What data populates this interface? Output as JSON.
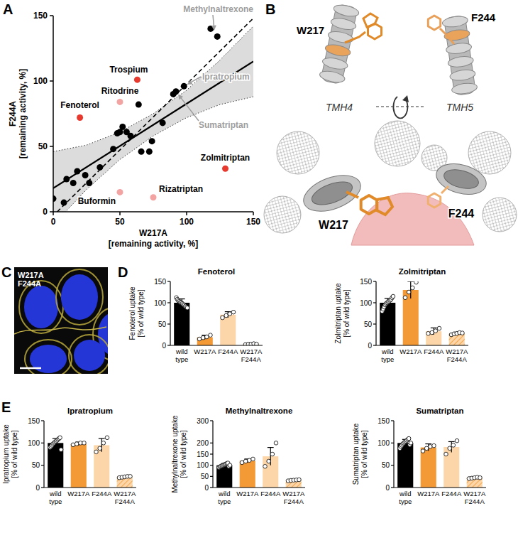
{
  "panel_letters": [
    "A",
    "B",
    "C",
    "D",
    "E"
  ],
  "structure": {
    "residues": [
      "W217",
      "F244"
    ],
    "helices": [
      "TMH4",
      "TMH5"
    ]
  },
  "microscopy": {
    "label": "W217A F244A"
  },
  "chart_data": [
    {
      "type": "scatter",
      "xlabel": "W217A [remaining activity, %]",
      "ylabel": "F244A [remaining activity, %]",
      "xlim": [
        0,
        150
      ],
      "ylim": [
        0,
        150
      ],
      "xticks": [
        0,
        50,
        100,
        150
      ],
      "yticks": [
        0,
        50,
        100,
        150
      ],
      "series": [
        {
          "type": "band",
          "color": "#dcdcdc",
          "line_style": "dotted",
          "x": [
            0,
            25,
            50,
            75,
            100,
            125,
            150
          ],
          "lower": [
            -10,
            17,
            40,
            58,
            72,
            82,
            88
          ],
          "upper": [
            46,
            51,
            61,
            75,
            93,
            116,
            142
          ]
        },
        {
          "type": "line",
          "color": "#000000",
          "line_style": "solid",
          "x": [
            0,
            150
          ],
          "values": [
            18,
            115
          ]
        },
        {
          "type": "line",
          "color": "#000000",
          "line_style": "dashed",
          "x": [
            3,
            150
          ],
          "values": [
            0,
            148
          ]
        },
        {
          "type": "scatter",
          "color": "#000000",
          "x": [
            0,
            8,
            10,
            15,
            18,
            24,
            27,
            35,
            45,
            48,
            50,
            52,
            55,
            58,
            64,
            66,
            72,
            74,
            82,
            90,
            92,
            98,
            118,
            123
          ],
          "values": [
            10,
            7,
            25,
            22,
            31,
            28,
            22,
            34,
            48,
            60,
            61,
            65,
            61,
            58,
            82,
            46,
            46,
            54,
            68,
            90,
            92,
            96,
            140,
            134
          ]
        },
        {
          "type": "scatter",
          "color": "#e8392f",
          "x": [
            63,
            20,
            129
          ],
          "values": [
            101,
            72,
            33
          ],
          "labels": [
            "Trospium",
            "Fenoterol",
            "Zolmitriptan"
          ]
        },
        {
          "type": "scatter",
          "color": "#f4a3a3",
          "x": [
            50,
            50,
            75
          ],
          "values": [
            84,
            15,
            11
          ],
          "labels": [
            "Ritodrine",
            "Buformin",
            "Rizatriptan"
          ]
        }
      ],
      "annotations": [
        {
          "text": "Methylnaltrexone",
          "x": 121,
          "y": 136,
          "color": "#9e9e9e"
        },
        {
          "text": "Ipratropium",
          "x": 98,
          "y": 96,
          "color": "#9e9e9e"
        },
        {
          "text": "Sumatriptan",
          "x": 92,
          "y": 92,
          "color": "#9e9e9e"
        }
      ]
    },
    {
      "type": "bar",
      "title": "Fenoterol",
      "ylabel": "Fenoterol uptake [% of wild type]",
      "categories": [
        "wild type",
        "W217A",
        "F244A",
        "W217A F244A"
      ],
      "values": [
        100,
        19,
        72,
        3
      ],
      "errors": [
        9,
        5,
        7,
        1
      ],
      "points": [
        [
          112,
          108,
          105,
          103,
          101,
          100,
          98,
          96,
          94,
          92,
          90,
          88
        ],
        [
          15,
          18,
          20,
          24
        ],
        [
          65,
          70,
          74,
          78
        ],
        [
          2,
          3,
          3,
          4,
          3
        ]
      ],
      "colors": [
        "#000000",
        "#f39a36",
        "#fcd6a8",
        "#fcd6a8"
      ],
      "ylim": [
        0,
        150
      ],
      "yticks": [
        0,
        50,
        100,
        150
      ]
    },
    {
      "type": "bar",
      "title": "Zolmitriptan",
      "ylabel": "Zolmitriptan uptake [% of wild type]",
      "categories": [
        "wild type",
        "W217A",
        "F244A",
        "W217A F244A"
      ],
      "values": [
        100,
        130,
        33,
        28
      ],
      "errors": [
        10,
        20,
        8,
        3
      ],
      "points": [
        [
          80,
          85,
          90,
          95,
          98,
          100,
          102,
          104,
          106,
          108,
          112,
          115
        ],
        [
          112,
          125,
          135,
          148
        ],
        [
          28,
          30,
          34,
          40
        ],
        [
          25,
          27,
          28,
          30,
          29
        ]
      ],
      "colors": [
        "#000000",
        "#f39a36",
        "#fcd6a8",
        "#fcd6a8"
      ],
      "ylim": [
        0,
        150
      ],
      "yticks": [
        0,
        50,
        100,
        150
      ]
    },
    {
      "type": "bar",
      "title": "Ipratropium",
      "ylabel": "Ipratropium uptake [% of wild type]",
      "categories": [
        "wild type",
        "W217A",
        "F244A",
        "W217A F244A"
      ],
      "values": [
        100,
        98,
        95,
        24
      ],
      "errors": [
        10,
        4,
        15,
        2
      ],
      "points": [
        [
          90,
          92,
          95,
          98,
          100,
          102,
          104,
          106,
          108,
          110,
          112,
          85
        ],
        [
          96,
          98,
          100,
          100
        ],
        [
          80,
          88,
          100,
          112
        ],
        [
          22,
          23,
          24,
          25,
          25
        ]
      ],
      "colors": [
        "#000000",
        "#f39a36",
        "#fcd6a8",
        "#fcd6a8"
      ],
      "ylim": [
        0,
        150
      ],
      "yticks": [
        0,
        50,
        100,
        150
      ]
    },
    {
      "type": "bar",
      "title": "Methylnaltrexone",
      "ylabel": "Methylnaltrexone uptake [% of wild type]",
      "categories": [
        "wild type",
        "W217A",
        "F244A",
        "W217A F244A"
      ],
      "values": [
        100,
        120,
        140,
        33
      ],
      "errors": [
        8,
        8,
        40,
        3
      ],
      "points": [
        [
          90,
          93,
          96,
          98,
          100,
          102,
          104,
          106,
          108,
          110,
          95,
          100
        ],
        [
          112,
          118,
          122,
          128
        ],
        [
          95,
          118,
          150,
          200
        ],
        [
          30,
          32,
          33,
          34,
          35
        ]
      ],
      "colors": [
        "#000000",
        "#f39a36",
        "#fcd6a8",
        "#fcd6a8"
      ],
      "ylim": [
        0,
        300
      ],
      "yticks": [
        0,
        50,
        100,
        150,
        200,
        300
      ]
    },
    {
      "type": "bar",
      "title": "Sumatriptan",
      "ylabel": "Sumatriptan uptake [% of wild type]",
      "categories": [
        "wild type",
        "W217A",
        "F244A",
        "W217A F244A"
      ],
      "values": [
        100,
        90,
        91,
        22
      ],
      "errors": [
        8,
        8,
        12,
        2
      ],
      "points": [
        [
          88,
          92,
          95,
          98,
          100,
          102,
          104,
          106,
          108,
          110,
          96,
          100
        ],
        [
          82,
          88,
          92,
          94
        ],
        [
          75,
          88,
          95,
          105
        ],
        [
          20,
          21,
          22,
          23,
          22
        ]
      ],
      "colors": [
        "#000000",
        "#f39a36",
        "#fcd6a8",
        "#fcd6a8"
      ],
      "ylim": [
        0,
        150
      ],
      "yticks": [
        0,
        50,
        100,
        150
      ]
    }
  ]
}
